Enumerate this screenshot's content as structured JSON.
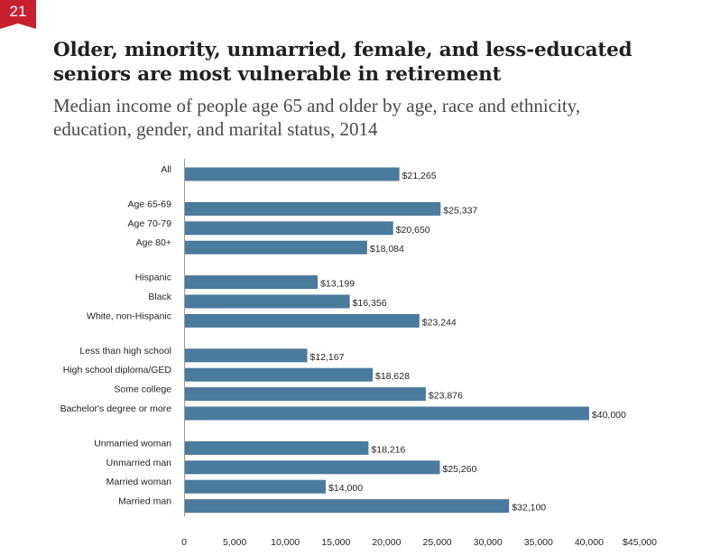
{
  "figure": {
    "number": "21",
    "title_line1": "Older, minority, unmarried, female, and less-educated",
    "title_line2": "seniors are most vulnerable in retirement",
    "subtitle_line1": "Median income of people age 65 and older by age, race and ethnicity,",
    "subtitle_line2": "education, gender, and marital status, 2014"
  },
  "colors": {
    "badge": "#c8202f",
    "bar": "#4a7a9c",
    "axis": "#9a9a9a"
  },
  "chart_data": {
    "type": "bar",
    "orientation": "horizontal",
    "xlim": [
      0,
      45000
    ],
    "xticks": [
      0,
      5000,
      10000,
      15000,
      20000,
      25000,
      30000,
      35000,
      40000,
      45000
    ],
    "xtick_labels": [
      "0",
      "5,000",
      "10,000",
      "15,000",
      "20,000",
      "25,000",
      "30,000",
      "35,000",
      "40,000",
      "$45,000"
    ],
    "groups": [
      {
        "categories": [
          "All"
        ],
        "values": [
          21265
        ],
        "labels": [
          "$21,265"
        ]
      },
      {
        "categories": [
          "Age 65-69",
          "Age 70-79",
          "Age 80+"
        ],
        "values": [
          25337,
          20650,
          18084
        ],
        "labels": [
          "$25,337",
          "$20,650",
          "$18,084"
        ]
      },
      {
        "categories": [
          "Hispanic",
          "Black",
          "White, non-Hispanic"
        ],
        "values": [
          13199,
          16356,
          23244
        ],
        "labels": [
          "$13,199",
          "$16,356",
          "$23,244"
        ]
      },
      {
        "categories": [
          "Less than high school",
          "High school diploma/GED",
          "Some college",
          "Bachelor's degree or more"
        ],
        "values": [
          12167,
          18628,
          23876,
          40000
        ],
        "labels": [
          "$12,167",
          "$18,628",
          "$23,876",
          "$40,000"
        ]
      },
      {
        "categories": [
          "Unmarried woman",
          "Unmarried man",
          "Married woman",
          "Married man"
        ],
        "values": [
          18216,
          25260,
          14000,
          32100
        ],
        "labels": [
          "$18,216",
          "$25,260",
          "$14,000",
          "$32,100"
        ]
      }
    ]
  }
}
